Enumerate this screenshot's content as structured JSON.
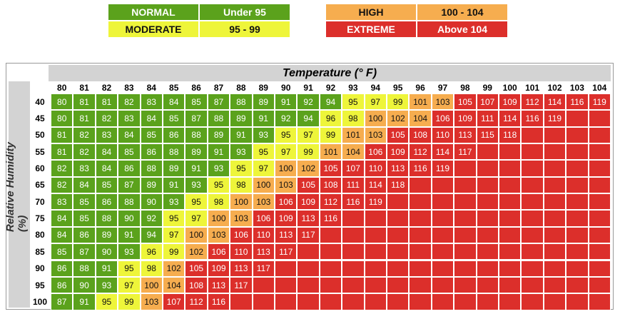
{
  "legend": [
    {
      "label": "NORMAL",
      "range": "Under 95",
      "color": "#5ba21c"
    },
    {
      "label": "MODERATE",
      "range": "95 - 99",
      "color": "#eef53a"
    },
    {
      "label": "HIGH",
      "range": "100 - 104",
      "color": "#f6ad4f"
    },
    {
      "label": "EXTREME",
      "range": "Above 104",
      "color": "#dc2f2b"
    }
  ],
  "table": {
    "column_title": "Temperature (° F)",
    "row_title": "Relative Humidity (%)",
    "columns": [
      80,
      81,
      82,
      83,
      84,
      85,
      86,
      87,
      88,
      89,
      90,
      91,
      92,
      93,
      94,
      95,
      96,
      97,
      98,
      99,
      100,
      101,
      102,
      103,
      104
    ],
    "rows": [
      {
        "humidity": 40,
        "values": [
          80,
          81,
          81,
          82,
          83,
          84,
          85,
          87,
          88,
          89,
          91,
          92,
          94,
          95,
          97,
          99,
          101,
          103,
          105,
          107,
          109,
          112,
          114,
          116,
          119
        ]
      },
      {
        "humidity": 45,
        "values": [
          80,
          81,
          82,
          83,
          84,
          85,
          87,
          88,
          89,
          91,
          92,
          94,
          96,
          98,
          100,
          102,
          104,
          106,
          109,
          111,
          114,
          116,
          119,
          null,
          null
        ]
      },
      {
        "humidity": 50,
        "values": [
          81,
          82,
          83,
          84,
          85,
          86,
          88,
          89,
          91,
          93,
          95,
          97,
          99,
          101,
          103,
          105,
          108,
          110,
          113,
          115,
          118,
          null,
          null,
          null,
          null
        ]
      },
      {
        "humidity": 55,
        "values": [
          81,
          82,
          84,
          85,
          86,
          88,
          89,
          91,
          93,
          95,
          97,
          99,
          101,
          104,
          106,
          109,
          112,
          114,
          117,
          null,
          null,
          null,
          null,
          null,
          null
        ]
      },
      {
        "humidity": 60,
        "values": [
          82,
          83,
          84,
          86,
          88,
          89,
          91,
          93,
          95,
          97,
          100,
          102,
          105,
          107,
          110,
          113,
          116,
          119,
          null,
          null,
          null,
          null,
          null,
          null,
          null
        ]
      },
      {
        "humidity": 65,
        "values": [
          82,
          84,
          85,
          87,
          89,
          91,
          93,
          95,
          98,
          100,
          103,
          105,
          108,
          111,
          114,
          118,
          null,
          null,
          null,
          null,
          null,
          null,
          null,
          null,
          null
        ]
      },
      {
        "humidity": 70,
        "values": [
          83,
          85,
          86,
          88,
          90,
          93,
          95,
          98,
          100,
          103,
          106,
          109,
          112,
          116,
          119,
          null,
          null,
          null,
          null,
          null,
          null,
          null,
          null,
          null,
          null
        ]
      },
      {
        "humidity": 75,
        "values": [
          84,
          85,
          88,
          90,
          92,
          95,
          97,
          100,
          103,
          106,
          109,
          113,
          116,
          null,
          null,
          null,
          null,
          null,
          null,
          null,
          null,
          null,
          null,
          null,
          null
        ]
      },
      {
        "humidity": 80,
        "values": [
          84,
          86,
          89,
          91,
          94,
          97,
          100,
          103,
          106,
          110,
          113,
          117,
          null,
          null,
          null,
          null,
          null,
          null,
          null,
          null,
          null,
          null,
          null,
          null,
          null
        ]
      },
      {
        "humidity": 85,
        "values": [
          85,
          87,
          90,
          93,
          96,
          99,
          102,
          106,
          110,
          113,
          117,
          null,
          null,
          null,
          null,
          null,
          null,
          null,
          null,
          null,
          null,
          null,
          null,
          null,
          null
        ]
      },
      {
        "humidity": 90,
        "values": [
          86,
          88,
          91,
          95,
          98,
          102,
          105,
          109,
          113,
          117,
          null,
          null,
          null,
          null,
          null,
          null,
          null,
          null,
          null,
          null,
          null,
          null,
          null,
          null,
          null
        ]
      },
      {
        "humidity": 95,
        "values": [
          86,
          90,
          93,
          97,
          100,
          104,
          108,
          113,
          117,
          null,
          null,
          null,
          null,
          null,
          null,
          null,
          null,
          null,
          null,
          null,
          null,
          null,
          null,
          null,
          null
        ]
      },
      {
        "humidity": 100,
        "values": [
          87,
          91,
          95,
          99,
          103,
          107,
          112,
          116,
          null,
          null,
          null,
          null,
          null,
          null,
          null,
          null,
          null,
          null,
          null,
          null,
          null,
          null,
          null,
          null,
          null
        ]
      }
    ]
  }
}
